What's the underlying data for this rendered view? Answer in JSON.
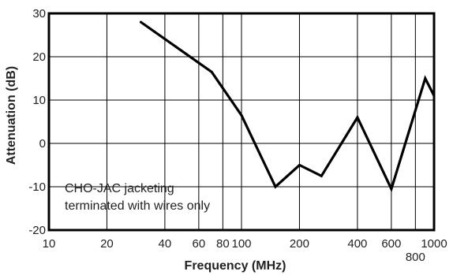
{
  "chart_data": {
    "type": "line",
    "xlabel": "Frequency (MHz)",
    "ylabel": "Attenuation (dB)",
    "x_scale": "log",
    "xlim": [
      10,
      1000
    ],
    "ylim": [
      -20,
      30
    ],
    "x_ticks": [
      10,
      20,
      40,
      60,
      80,
      100,
      200,
      400,
      600,
      800,
      1000
    ],
    "x_tick_labels": [
      "10",
      "20",
      "40",
      "60",
      "80",
      "100",
      "200",
      "400",
      "600",
      "800",
      "1000"
    ],
    "y_ticks": [
      -20,
      -10,
      0,
      10,
      20,
      30
    ],
    "y_tick_labels": [
      "-20",
      "-10",
      "0",
      "10",
      "20",
      "30"
    ],
    "grid": true,
    "annotation": [
      "CHO-JAC jacketing",
      "terminated with wires only"
    ],
    "series": [
      {
        "color": "#000000",
        "points": [
          {
            "x": 30,
            "y": 28
          },
          {
            "x": 70,
            "y": 16.5
          },
          {
            "x": 100,
            "y": 6.5
          },
          {
            "x": 150,
            "y": -10
          },
          {
            "x": 200,
            "y": -5
          },
          {
            "x": 260,
            "y": -7.5
          },
          {
            "x": 400,
            "y": 6
          },
          {
            "x": 600,
            "y": -10.5
          },
          {
            "x": 900,
            "y": 15
          },
          {
            "x": 1000,
            "y": 11
          }
        ]
      }
    ]
  }
}
